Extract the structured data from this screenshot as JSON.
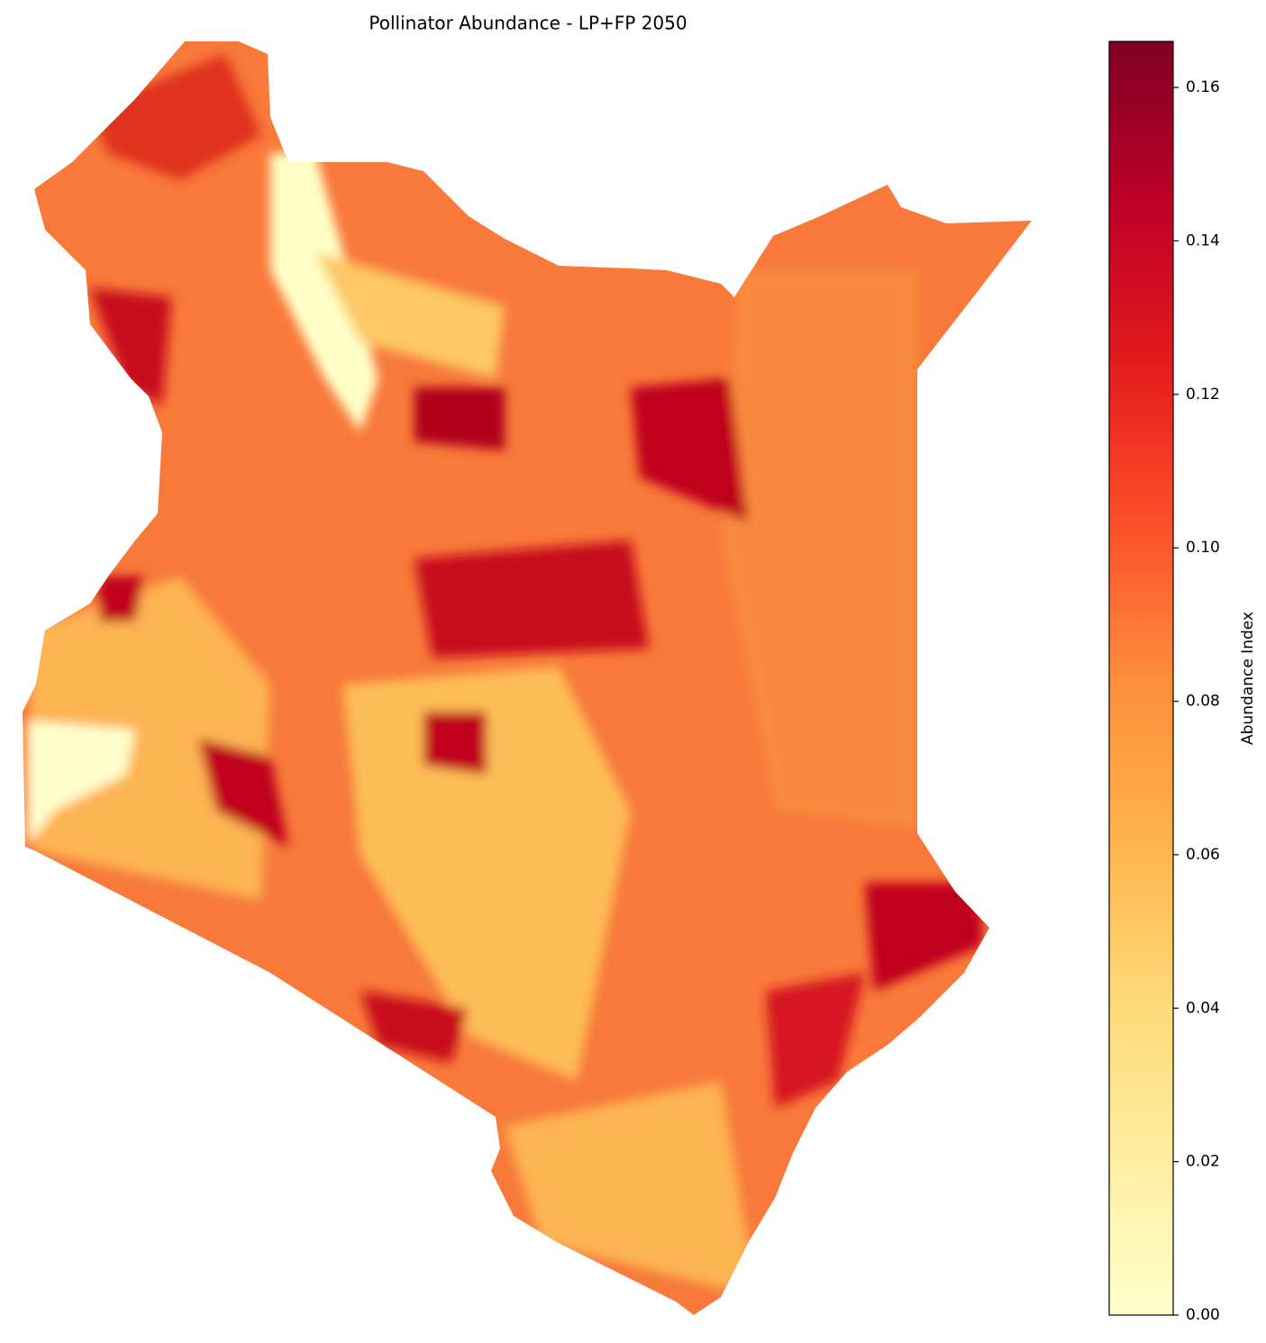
{
  "chart_data": {
    "type": "raster-map",
    "title": "Pollinator Abundance - LP+FP 2050",
    "colorbar": {
      "label": "Abundance Index",
      "lim": [
        0,
        0.166
      ],
      "ticks": [
        {
          "value": 0,
          "label": "0.00"
        },
        {
          "value": 0.02,
          "label": "0.02"
        },
        {
          "value": 0.04,
          "label": "0.04"
        },
        {
          "value": 0.06,
          "label": "0.06"
        },
        {
          "value": 0.08,
          "label": "0.08"
        },
        {
          "value": 0.1,
          "label": "0.10"
        },
        {
          "value": 0.12,
          "label": "0.12"
        },
        {
          "value": 0.14,
          "label": "0.14"
        },
        {
          "value": 0.16,
          "label": "0.16"
        }
      ],
      "colors": [
        "#ffffcc",
        "#ffeda0",
        "#fed976",
        "#feb24c",
        "#fd8d3c",
        "#fc4e2a",
        "#e31a1c",
        "#bd0026",
        "#800026"
      ]
    }
  }
}
